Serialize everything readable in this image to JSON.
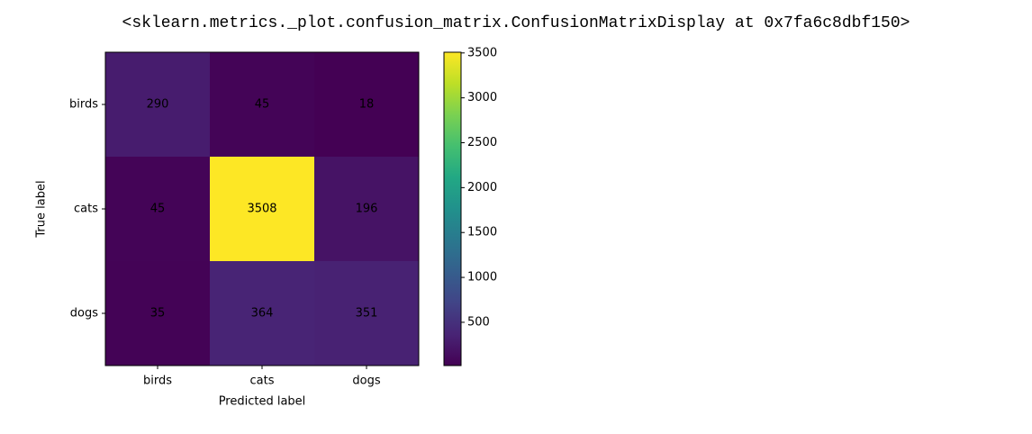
{
  "output_text": "<sklearn.metrics._plot.confusion_matrix.ConfusionMatrixDisplay at 0x7fa6c8dbf150>",
  "chart_data": {
    "type": "heatmap",
    "x_label": "Predicted label",
    "y_label": "True label",
    "x_categories": [
      "birds",
      "cats",
      "dogs"
    ],
    "y_categories": [
      "birds",
      "cats",
      "dogs"
    ],
    "values": [
      [
        290,
        45,
        18
      ],
      [
        45,
        3508,
        196
      ],
      [
        35,
        364,
        351
      ]
    ],
    "colormap": "viridis",
    "colorbar_lim": [
      18,
      3508
    ],
    "colorbar_ticks": [
      500,
      1000,
      1500,
      2000,
      2500,
      3000,
      3500
    ]
  }
}
